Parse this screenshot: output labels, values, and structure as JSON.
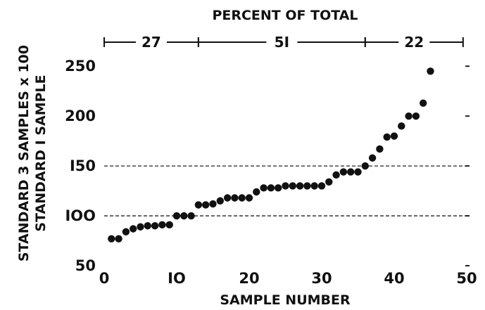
{
  "chart_data": {
    "type": "scatter",
    "title": "PERCENT OF TOTAL",
    "xlabel": "SAMPLE NUMBER",
    "ylabel_line1": "STANDARD 3 SAMPLES x 100",
    "ylabel_line2": "STANDARD I SAMPLE",
    "xlim": [
      0,
      50
    ],
    "ylim": [
      50,
      260
    ],
    "x_ticks": [
      0,
      10,
      20,
      30,
      40,
      50
    ],
    "x_tick_labels": [
      "0",
      "IO",
      "20",
      "30",
      "40",
      "50"
    ],
    "y_ticks": [
      50,
      100,
      150,
      200,
      250
    ],
    "y_tick_labels": [
      "50",
      "IOO",
      "I50",
      "200",
      "250"
    ],
    "reference_lines": [
      100,
      150
    ],
    "percent_segments": [
      {
        "label": "27",
        "x_start": 0,
        "x_end": 13
      },
      {
        "label": "5I",
        "x_start": 13,
        "x_end": 36
      },
      {
        "label": "22",
        "x_start": 36,
        "x_end": 49.5
      }
    ],
    "x": [
      1,
      2,
      3,
      4,
      5,
      6,
      7,
      8,
      9,
      10,
      11,
      12,
      13,
      14,
      15,
      16,
      17,
      18,
      19,
      20,
      21,
      22,
      23,
      24,
      25,
      26,
      27,
      28,
      29,
      30,
      31,
      32,
      33,
      34,
      35,
      36,
      37,
      38,
      39,
      40,
      41,
      42,
      43,
      44,
      45
    ],
    "y": [
      77,
      77,
      84,
      87,
      89,
      90,
      90,
      91,
      91,
      100,
      100,
      100,
      111,
      111,
      112,
      115,
      118,
      118,
      118,
      118,
      124,
      128,
      128,
      128,
      130,
      130,
      130,
      130,
      130,
      130,
      134,
      141,
      144,
      144,
      144,
      150,
      158,
      167,
      179,
      180,
      190,
      200,
      200,
      213,
      245
    ]
  }
}
